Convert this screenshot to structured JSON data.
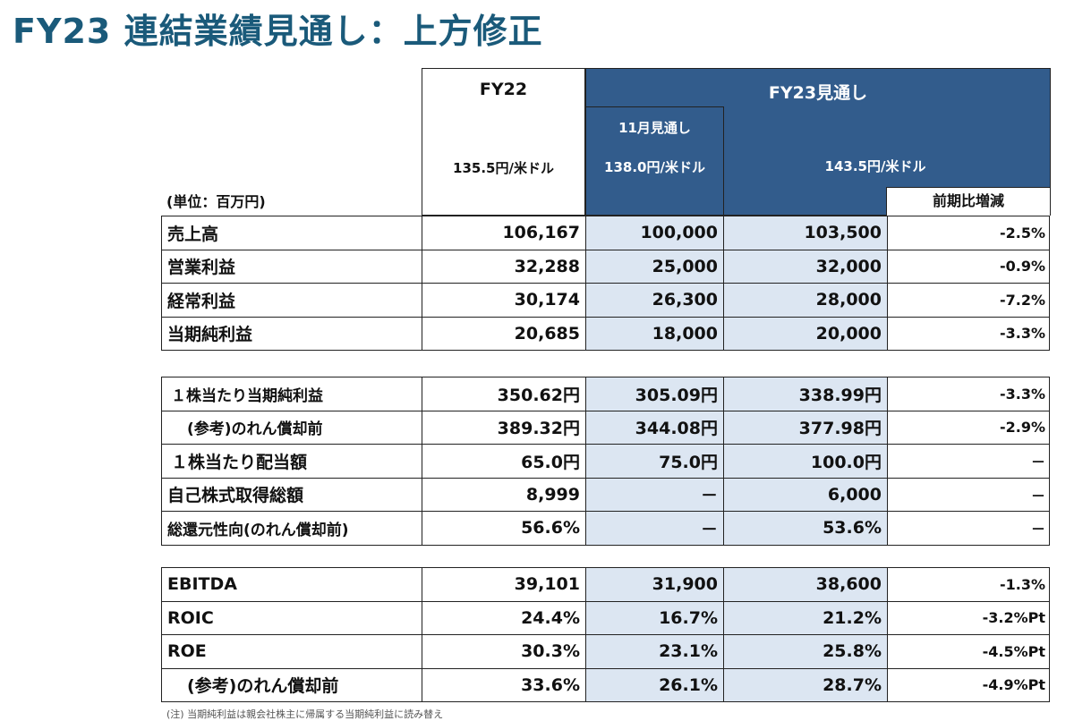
{
  "title": "FY23 連結業績見通し：上方修正",
  "header": {
    "fy22_label": "FY22",
    "fy22_rate": "135.5円/米ドル",
    "fy23_label": "FY23見通し",
    "nov_label": "11月見通し",
    "nov_rate": "138.0円/米ドル",
    "fy23_rate": "143.5円/米ドル",
    "yoy_label": "前期比増減",
    "unit_label": "(単位：百万円)"
  },
  "groups": [
    {
      "rows": [
        {
          "label": "売上高",
          "indent": 0,
          "fy22": "106,167",
          "nov": "100,000",
          "fy23": "103,500",
          "yoy": "-2.5%"
        },
        {
          "label": "営業利益",
          "indent": 0,
          "fy22": "32,288",
          "nov": "25,000",
          "fy23": "32,000",
          "yoy": "-0.9%"
        },
        {
          "label": "経常利益",
          "indent": 0,
          "fy22": "30,174",
          "nov": "26,300",
          "fy23": "28,000",
          "yoy": "-7.2%"
        },
        {
          "label": "当期純利益",
          "indent": 0,
          "fy22": "20,685",
          "nov": "18,000",
          "fy23": "20,000",
          "yoy": "-3.3%"
        }
      ]
    },
    {
      "rows": [
        {
          "label": "１株当たり当期純利益",
          "indent": 1,
          "fy22": "350.62円",
          "nov": "305.09円",
          "fy23": "338.99円",
          "yoy": "-3.3%"
        },
        {
          "label": "(参考)のれん償却前",
          "indent": 2,
          "fy22": "389.32円",
          "nov": "344.08円",
          "fy23": "377.98円",
          "yoy": "-2.9%"
        },
        {
          "label": "１株当たり配当額",
          "indent": 1,
          "fy22": "65.0円",
          "nov": "75.0円",
          "fy23": "100.0円",
          "yoy": "－"
        },
        {
          "label": "自己株式取得総額",
          "indent": 0,
          "fy22": "8,999",
          "nov": "－",
          "fy23": "6,000",
          "yoy": "－"
        },
        {
          "label": "総還元性向(のれん償却前)",
          "indent": 0,
          "fy22": "56.6%",
          "nov": "－",
          "fy23": "53.6%",
          "yoy": "－"
        }
      ]
    },
    {
      "rows": [
        {
          "label": "EBITDA",
          "indent": 0,
          "fy22": "39,101",
          "nov": "31,900",
          "fy23": "38,600",
          "yoy": "-1.3%"
        },
        {
          "label": "ROIC",
          "indent": 0,
          "fy22": "24.4%",
          "nov": "16.7%",
          "fy23": "21.2%",
          "yoy": "-3.2%Pt"
        },
        {
          "label": "ROE",
          "indent": 0,
          "fy22": "30.3%",
          "nov": "23.1%",
          "fy23": "25.8%",
          "yoy": "-4.5%Pt"
        },
        {
          "label": "(参考)のれん償却前",
          "indent": 2,
          "fy22": "33.6%",
          "nov": "26.1%",
          "fy23": "28.7%",
          "yoy": "-4.9%Pt"
        }
      ]
    }
  ],
  "footnote": "(注) 当期純利益は親会社株主に帰属する当期純利益に読み替え"
}
